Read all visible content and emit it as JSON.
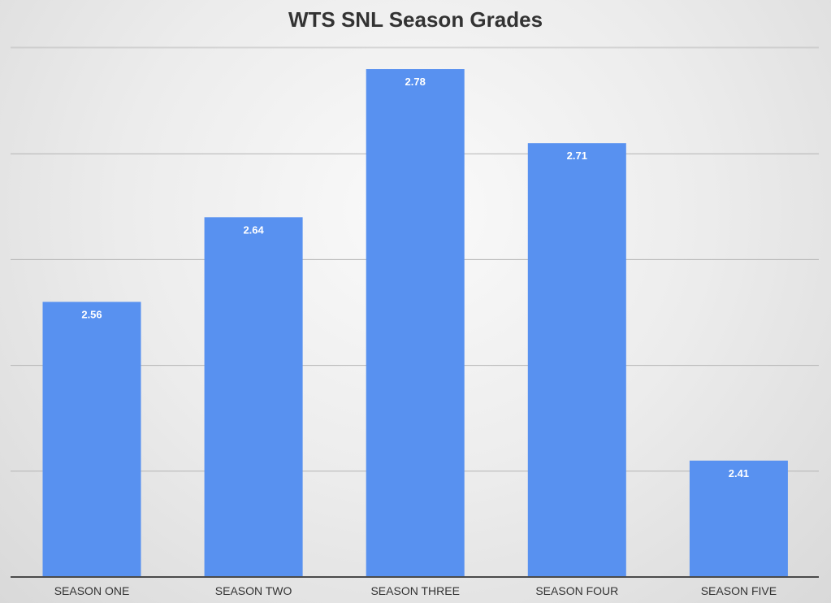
{
  "colors": {
    "bar": "#5891f0",
    "gridline": "#b4b4b4",
    "axis_line": "#4a4a4a",
    "title_text": "#333333",
    "data_label_text": "#ffffff",
    "tick_label_text": "#333333"
  },
  "chart_data": {
    "type": "bar",
    "title": "WTS SNL Season Grades",
    "xlabel": "",
    "ylabel": "",
    "categories": [
      "SEASON ONE",
      "SEASON TWO",
      "SEASON THREE",
      "SEASON FOUR",
      "SEASON FIVE"
    ],
    "values": [
      2.56,
      2.64,
      2.78,
      2.71,
      2.41
    ],
    "data_labels": [
      "2.56",
      "2.64",
      "2.78",
      "2.71",
      "2.41"
    ],
    "ylim": [
      2.3,
      2.8
    ],
    "ytick_step": 0.1,
    "grid": true,
    "legend": "none"
  }
}
